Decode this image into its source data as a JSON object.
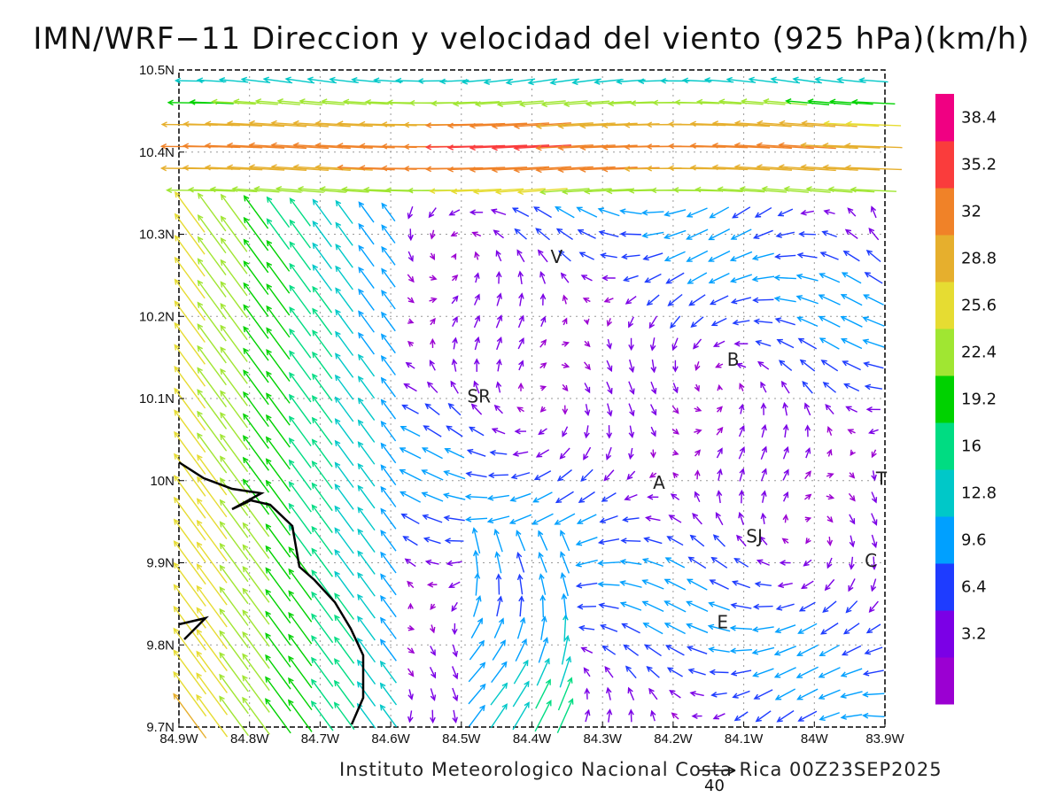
{
  "title": "IMN/WRF−11 Direccion y velocidad del viento (925 hPa)(km/h)",
  "credit": "Instituto Meteorologico Nacional Costa Rica 00Z23SEP2025",
  "reference_vector": {
    "label": "40"
  },
  "axes": {
    "lon_ticks": [
      "84.9W",
      "84.8W",
      "84.7W",
      "84.6W",
      "84.5W",
      "84.4W",
      "84.3W",
      "84.2W",
      "84.1W",
      "84W",
      "83.9W"
    ],
    "lat_ticks": [
      "9.7N",
      "9.8N",
      "9.9N",
      "10N",
      "10.1N",
      "10.2N",
      "10.3N",
      "10.4N",
      "10.5N"
    ],
    "lon_range": [
      -84.9,
      -83.9
    ],
    "lat_range": [
      9.7,
      10.5
    ],
    "grid": "dotted"
  },
  "places": [
    {
      "label": "V",
      "lon": -84.365,
      "lat": 10.265
    },
    {
      "label": "B",
      "lon": -84.115,
      "lat": 10.14
    },
    {
      "label": "SR",
      "lon": -84.475,
      "lat": 10.095
    },
    {
      "label": "A",
      "lon": -84.22,
      "lat": 9.99
    },
    {
      "label": "SJ",
      "lon": -84.085,
      "lat": 9.925
    },
    {
      "label": "C",
      "lon": -83.92,
      "lat": 9.895
    },
    {
      "label": "E",
      "lon": -84.13,
      "lat": 9.82
    },
    {
      "label": "T",
      "lon": -83.905,
      "lat": 9.995
    }
  ],
  "colorbar": {
    "labels": [
      "38.4",
      "35.2",
      "32",
      "28.8",
      "25.6",
      "22.4",
      "19.2",
      "16",
      "12.8",
      "9.6",
      "6.4",
      "3.2"
    ],
    "colors": [
      "#9b00d2",
      "#7b00e6",
      "#1e3cff",
      "#00a0ff",
      "#00c8c8",
      "#00dc82",
      "#00d200",
      "#a0e632",
      "#e6dc32",
      "#e6af2d",
      "#f08228",
      "#fa3c3c",
      "#f00082"
    ]
  }
}
